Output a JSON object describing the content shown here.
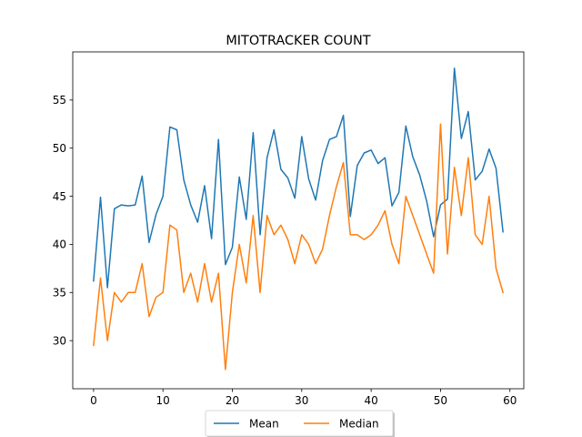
{
  "chart_data": {
    "type": "line",
    "title": "MITOTRACKER COUNT",
    "xlabel": "",
    "ylabel": "",
    "xlim": [
      -3,
      62
    ],
    "ylim": [
      25,
      60
    ],
    "xticks": [
      0,
      10,
      20,
      30,
      40,
      50,
      60
    ],
    "yticks": [
      30,
      35,
      40,
      45,
      50,
      55
    ],
    "grid": false,
    "legend_position": "bottom-center",
    "x": [
      0,
      1,
      2,
      3,
      4,
      5,
      6,
      7,
      8,
      9,
      10,
      11,
      12,
      13,
      14,
      15,
      16,
      17,
      18,
      19,
      20,
      21,
      22,
      23,
      24,
      25,
      26,
      27,
      28,
      29,
      30,
      31,
      32,
      33,
      34,
      35,
      36,
      37,
      38,
      39,
      40,
      41,
      42,
      43,
      44,
      45,
      46,
      47,
      48,
      49,
      50,
      51,
      52,
      53,
      54,
      55,
      56,
      57,
      58,
      59
    ],
    "series": [
      {
        "name": "Mean",
        "color": "#1f77b4",
        "values": [
          36.2,
          44.9,
          35.5,
          43.7,
          44.1,
          44.0,
          44.1,
          47.1,
          40.2,
          43.1,
          45.0,
          52.2,
          51.9,
          46.7,
          44.1,
          42.3,
          46.1,
          40.6,
          50.9,
          37.9,
          39.7,
          47.0,
          42.6,
          51.6,
          41.0,
          49.0,
          51.9,
          47.8,
          46.9,
          44.8,
          51.2,
          46.8,
          44.6,
          48.7,
          50.9,
          51.2,
          53.4,
          42.9,
          48.2,
          49.5,
          49.8,
          48.4,
          49.0,
          44.0,
          45.4,
          52.3,
          49.1,
          47.2,
          44.5,
          40.8,
          44.1,
          44.7,
          58.3,
          51.0,
          53.8,
          46.7,
          47.6,
          49.9,
          47.9,
          41.3
        ]
      },
      {
        "name": "Median",
        "color": "#ff7f0e",
        "values": [
          29.5,
          36.5,
          30.0,
          35.0,
          34.0,
          35.0,
          35.0,
          38.0,
          32.5,
          34.5,
          35.0,
          42.0,
          41.5,
          35.0,
          37.0,
          34.0,
          38.0,
          34.0,
          37.0,
          27.0,
          35.0,
          40.0,
          36.0,
          43.0,
          35.0,
          43.0,
          41.0,
          42.0,
          40.5,
          38.0,
          41.0,
          40.0,
          38.0,
          39.5,
          43.0,
          46.0,
          48.5,
          41.0,
          41.0,
          40.5,
          41.0,
          42.0,
          43.5,
          40.0,
          38.0,
          45.0,
          43.0,
          41.0,
          39.0,
          37.0,
          52.5,
          39.0,
          48.0,
          43.0,
          49.0,
          41.0,
          40.0,
          45.0,
          37.5,
          35.0
        ]
      }
    ]
  }
}
